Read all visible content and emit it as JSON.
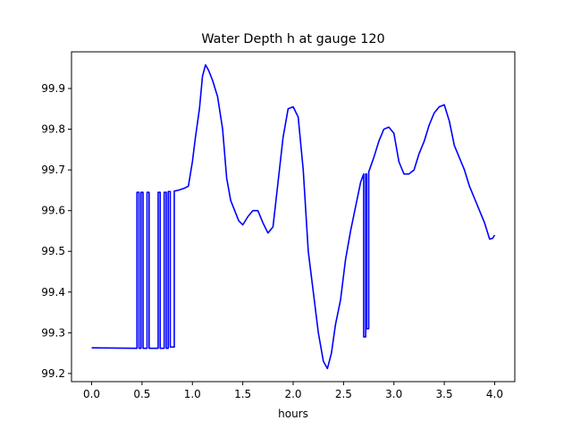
{
  "chart_data": {
    "type": "line",
    "title": "Water Depth h at gauge 120",
    "xlabel": "hours",
    "ylabel": "",
    "xlim": [
      -0.2,
      4.2
    ],
    "ylim": [
      99.18,
      99.99
    ],
    "xticks": [
      0.0,
      0.5,
      1.0,
      1.5,
      2.0,
      2.5,
      3.0,
      3.5,
      4.0
    ],
    "xtick_labels": [
      "0.0",
      "0.5",
      "1.0",
      "1.5",
      "2.0",
      "2.5",
      "3.0",
      "3.5",
      "4.0"
    ],
    "yticks": [
      99.2,
      99.3,
      99.4,
      99.5,
      99.6,
      99.7,
      99.8,
      99.9
    ],
    "ytick_labels": [
      "99.2",
      "99.3",
      "99.4",
      "99.5",
      "99.6",
      "99.7",
      "99.8",
      "99.9"
    ],
    "grid": false,
    "series": [
      {
        "color": "#0000ff",
        "points": [
          [
            0.0,
            99.263
          ],
          [
            0.45,
            99.262
          ],
          [
            0.45,
            99.645
          ],
          [
            0.47,
            99.645
          ],
          [
            0.47,
            99.262
          ],
          [
            0.49,
            99.262
          ],
          [
            0.49,
            99.645
          ],
          [
            0.51,
            99.645
          ],
          [
            0.51,
            99.262
          ],
          [
            0.55,
            99.262
          ],
          [
            0.55,
            99.645
          ],
          [
            0.57,
            99.645
          ],
          [
            0.57,
            99.262
          ],
          [
            0.66,
            99.262
          ],
          [
            0.66,
            99.645
          ],
          [
            0.68,
            99.645
          ],
          [
            0.68,
            99.262
          ],
          [
            0.72,
            99.262
          ],
          [
            0.72,
            99.645
          ],
          [
            0.74,
            99.645
          ],
          [
            0.74,
            99.262
          ],
          [
            0.76,
            99.262
          ],
          [
            0.76,
            99.647
          ],
          [
            0.78,
            99.647
          ],
          [
            0.78,
            99.265
          ],
          [
            0.82,
            99.265
          ],
          [
            0.82,
            99.648
          ],
          [
            0.86,
            99.65
          ],
          [
            0.92,
            99.655
          ],
          [
            0.96,
            99.66
          ],
          [
            1.0,
            99.72
          ],
          [
            1.03,
            99.78
          ],
          [
            1.07,
            99.85
          ],
          [
            1.1,
            99.93
          ],
          [
            1.13,
            99.958
          ],
          [
            1.16,
            99.945
          ],
          [
            1.2,
            99.92
          ],
          [
            1.25,
            99.88
          ],
          [
            1.3,
            99.8
          ],
          [
            1.34,
            99.68
          ],
          [
            1.38,
            99.625
          ],
          [
            1.42,
            99.6
          ],
          [
            1.46,
            99.575
          ],
          [
            1.5,
            99.565
          ],
          [
            1.55,
            99.585
          ],
          [
            1.6,
            99.6
          ],
          [
            1.65,
            99.6
          ],
          [
            1.7,
            99.57
          ],
          [
            1.75,
            99.545
          ],
          [
            1.8,
            99.56
          ],
          [
            1.85,
            99.67
          ],
          [
            1.9,
            99.78
          ],
          [
            1.95,
            99.85
          ],
          [
            2.0,
            99.855
          ],
          [
            2.05,
            99.83
          ],
          [
            2.1,
            99.7
          ],
          [
            2.15,
            99.5
          ],
          [
            2.2,
            99.4
          ],
          [
            2.25,
            99.3
          ],
          [
            2.3,
            99.23
          ],
          [
            2.34,
            99.212
          ],
          [
            2.38,
            99.25
          ],
          [
            2.42,
            99.32
          ],
          [
            2.47,
            99.38
          ],
          [
            2.52,
            99.48
          ],
          [
            2.57,
            99.55
          ],
          [
            2.62,
            99.61
          ],
          [
            2.67,
            99.67
          ],
          [
            2.7,
            99.69
          ],
          [
            2.7,
            99.29
          ],
          [
            2.72,
            99.29
          ],
          [
            2.72,
            99.69
          ],
          [
            2.73,
            99.69
          ],
          [
            2.73,
            99.31
          ],
          [
            2.75,
            99.31
          ],
          [
            2.75,
            99.695
          ],
          [
            2.8,
            99.73
          ],
          [
            2.85,
            99.77
          ],
          [
            2.9,
            99.8
          ],
          [
            2.95,
            99.805
          ],
          [
            3.0,
            99.79
          ],
          [
            3.05,
            99.72
          ],
          [
            3.1,
            99.69
          ],
          [
            3.15,
            99.69
          ],
          [
            3.2,
            99.7
          ],
          [
            3.25,
            99.74
          ],
          [
            3.3,
            99.77
          ],
          [
            3.35,
            99.81
          ],
          [
            3.4,
            99.84
          ],
          [
            3.45,
            99.855
          ],
          [
            3.5,
            99.86
          ],
          [
            3.55,
            99.82
          ],
          [
            3.6,
            99.76
          ],
          [
            3.65,
            99.73
          ],
          [
            3.7,
            99.7
          ],
          [
            3.75,
            99.66
          ],
          [
            3.8,
            99.63
          ],
          [
            3.85,
            99.6
          ],
          [
            3.9,
            99.57
          ],
          [
            3.95,
            99.53
          ],
          [
            3.98,
            99.532
          ],
          [
            4.0,
            99.54
          ]
        ]
      }
    ]
  }
}
